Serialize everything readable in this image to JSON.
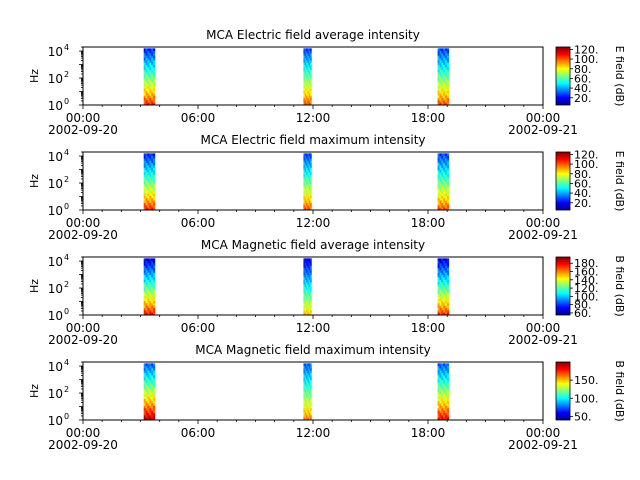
{
  "figure": {
    "time_ticks": [
      "00:00",
      "06:00",
      "12:00",
      "18:00",
      "00:00"
    ],
    "date_labels": [
      "2002-09-20",
      "2002-09-21"
    ],
    "y_label": "Hz",
    "y_tick_bases": [
      "10",
      "10",
      "10"
    ],
    "y_tick_exponents": [
      "0",
      "2",
      "4"
    ]
  },
  "chart_data": [
    {
      "type": "heatmap",
      "title": "MCA  Electric field average intensity",
      "ylabel": "Hz",
      "yscale": "log",
      "ylim": [
        1,
        20000
      ],
      "xlim": [
        "2002-09-20 00:00",
        "2002-09-21 00:00"
      ],
      "colorbar": {
        "label": "E field (dB)",
        "ticks": [
          20,
          40,
          60,
          80,
          100,
          120
        ],
        "range": [
          5,
          125
        ]
      },
      "passes": [
        {
          "start": "2002-09-20 03:10",
          "end": "2002-09-20 03:45",
          "low_value": 105,
          "high_value": 25
        },
        {
          "start": "2002-09-20 11:30",
          "end": "2002-09-20 11:55",
          "low_value": 100,
          "high_value": 28
        },
        {
          "start": "2002-09-20 18:30",
          "end": "2002-09-20 19:05",
          "low_value": 100,
          "high_value": 28
        }
      ]
    },
    {
      "type": "heatmap",
      "title": "MCA  Electric field maximum intensity",
      "ylabel": "Hz",
      "yscale": "log",
      "ylim": [
        1,
        20000
      ],
      "xlim": [
        "2002-09-20 00:00",
        "2002-09-21 00:00"
      ],
      "colorbar": {
        "label": "E field (dB)",
        "ticks": [
          20,
          40,
          60,
          80,
          100,
          120
        ],
        "range": [
          5,
          125
        ]
      },
      "passes": [
        {
          "start": "2002-09-20 03:10",
          "end": "2002-09-20 03:45",
          "low_value": 105,
          "high_value": 25
        },
        {
          "start": "2002-09-20 11:30",
          "end": "2002-09-20 11:55",
          "low_value": 100,
          "high_value": 28
        },
        {
          "start": "2002-09-20 18:30",
          "end": "2002-09-20 19:05",
          "low_value": 100,
          "high_value": 28
        }
      ]
    },
    {
      "type": "heatmap",
      "title": "MCA  Magnetic field average intensity",
      "ylabel": "Hz",
      "yscale": "log",
      "ylim": [
        1,
        20000
      ],
      "xlim": [
        "2002-09-20 00:00",
        "2002-09-21 00:00"
      ],
      "colorbar": {
        "label": "B field (dB)",
        "ticks": [
          60,
          80,
          100,
          120,
          140,
          160,
          180
        ],
        "range": [
          55,
          195
        ]
      },
      "passes": [
        {
          "start": "2002-09-20 03:10",
          "end": "2002-09-20 03:45",
          "low_value": 175,
          "high_value": 70
        },
        {
          "start": "2002-09-20 11:30",
          "end": "2002-09-20 11:55",
          "low_value": 150,
          "high_value": 70
        },
        {
          "start": "2002-09-20 18:30",
          "end": "2002-09-20 19:05",
          "low_value": 170,
          "high_value": 70
        }
      ]
    },
    {
      "type": "heatmap",
      "title": "MCA  Magnetic field maximum intensity",
      "ylabel": "Hz",
      "yscale": "log",
      "ylim": [
        1,
        20000
      ],
      "xlim": [
        "2002-09-20 00:00",
        "2002-09-21 00:00"
      ],
      "colorbar": {
        "label": "B field (dB)",
        "ticks": [
          50,
          100,
          150
        ],
        "range": [
          40,
          200
        ]
      },
      "passes": [
        {
          "start": "2002-09-20 03:10",
          "end": "2002-09-20 03:45",
          "low_value": 190,
          "high_value": 75
        },
        {
          "start": "2002-09-20 11:30",
          "end": "2002-09-20 11:55",
          "low_value": 160,
          "high_value": 75
        },
        {
          "start": "2002-09-20 18:30",
          "end": "2002-09-20 19:05",
          "low_value": 180,
          "high_value": 75
        }
      ]
    }
  ]
}
